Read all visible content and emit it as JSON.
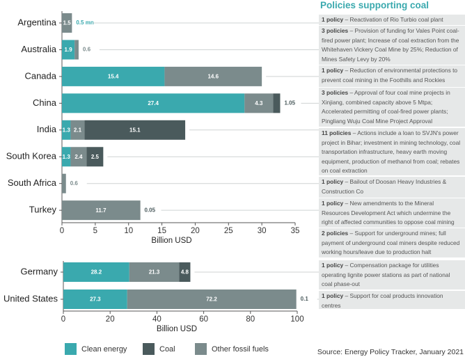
{
  "chart_data": [
    {
      "type": "bar",
      "orientation": "horizontal",
      "stacked": true,
      "categories": [
        "Argentina",
        "Australia",
        "Canada",
        "China",
        "India",
        "South Korea",
        "South Africa",
        "Turkey"
      ],
      "series": [
        {
          "name": "Clean energy",
          "color": "#3aa9ae",
          "values": [
            0.0005,
            1.9,
            15.4,
            27.4,
            1.3,
            1.3,
            null,
            null
          ],
          "value_labels": [
            "0.5 mn",
            "1.9",
            "15.4",
            "27.4",
            "1.3",
            "1.3",
            null,
            null
          ]
        },
        {
          "name": "Other fossil fuels",
          "color": "#7b8b8c",
          "values": [
            1.5,
            0.6,
            14.6,
            4.3,
            2.1,
            2.4,
            0.6,
            11.7
          ]
        },
        {
          "name": "Coal",
          "color": "#4a5a5c",
          "values": [
            null,
            null,
            null,
            1.05,
            15.1,
            2.5,
            null,
            0.05
          ]
        }
      ],
      "xlim": [
        0,
        35
      ],
      "xticks": [
        0,
        5,
        10,
        15,
        20,
        25,
        30,
        35
      ],
      "xlabel": "Billion USD"
    },
    {
      "type": "bar",
      "orientation": "horizontal",
      "stacked": true,
      "categories": [
        "Germany",
        "United States"
      ],
      "series": [
        {
          "name": "Clean energy",
          "color": "#3aa9ae",
          "values": [
            28.2,
            27.3
          ]
        },
        {
          "name": "Other fossil fuels",
          "color": "#7b8b8c",
          "values": [
            21.3,
            72.2
          ]
        },
        {
          "name": "Coal",
          "color": "#4a5a5c",
          "values": [
            4.8,
            0.1
          ]
        }
      ],
      "xlim": [
        0,
        100
      ],
      "xticks": [
        0,
        20,
        40,
        60,
        80,
        100
      ],
      "xlabel": "Billion USD"
    }
  ],
  "policies": {
    "title": "Policies supporting coal",
    "items": [
      {
        "count": "1 policy",
        "text": "– Reactivation of Rio Turbio coal plant"
      },
      {
        "count": "3 policies",
        "text": "– Provision of funding for Vales Point coal-fired power plant; Increase of coal extraction from the Whitehaven Vickery Coal Mine by 25%; Reduction of Mines Safety Levy by 20%"
      },
      {
        "count": "1 policy",
        "text": "– Reduction of environmental protections to prevent coal mining in the Foothills and Rockies"
      },
      {
        "count": "3 policies",
        "text": "– Approval of four coal mine projects in Xinjiang, combined capacity above 5 Mtpa; Accelerated permitting of coal-fired power plants; Pingliang Wuju Coal Mine Project Approval"
      },
      {
        "count": "11 policies",
        "text": "– Actions include a loan to SVJN's power project in Bihar; investment in mining technology, coal transportation infrastructure, heavy earth moving equipment, production of methanol from coal; rebates on coal extraction"
      },
      {
        "count": "1 policy",
        "text": "– Bailout of Doosan Heavy Industries & Construction Co"
      },
      {
        "count": "1 policy",
        "text": "– New amendments to the Mineral Resources Development Act which undermine the right of affected communities to oppose coal mining"
      },
      {
        "count": "2 policies",
        "text": "– Support for underground mines; full payment of underground coal miners despite reduced working hours/leave due to production halt"
      },
      {
        "count": "1 policy",
        "text": "– Compensation package for utilities operating lignite power stations as part of national coal phase-out"
      },
      {
        "count": "1 policy",
        "text": "– Support for coal products innovation centres"
      }
    ]
  },
  "source": "Source: Energy Policy Tracker, January 2021"
}
